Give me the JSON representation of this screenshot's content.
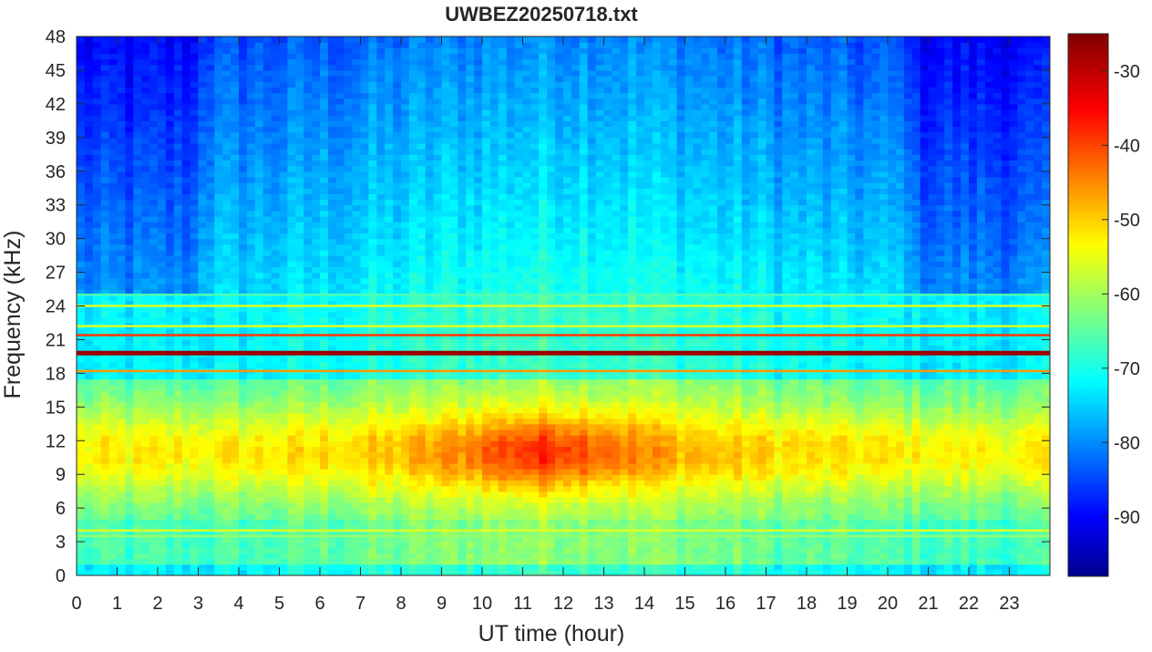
{
  "chart_data": {
    "type": "heatmap",
    "title": "UWBEZ20250718.txt",
    "xlabel": "UT time (hour)",
    "ylabel": "Frequency (kHz)",
    "xlim": [
      0,
      24
    ],
    "ylim": [
      0,
      48
    ],
    "xticks": [
      0,
      1,
      2,
      3,
      4,
      5,
      6,
      7,
      8,
      9,
      10,
      11,
      12,
      13,
      14,
      15,
      16,
      17,
      18,
      19,
      20,
      21,
      22,
      23
    ],
    "yticks": [
      0,
      3,
      6,
      9,
      12,
      15,
      18,
      21,
      24,
      27,
      30,
      33,
      36,
      39,
      42,
      45,
      48
    ],
    "colorbar": {
      "colormap": "jet",
      "range": [
        -98,
        -25
      ],
      "ticks": [
        -90,
        -80,
        -70,
        -60,
        -50,
        -40,
        -30
      ]
    },
    "features": {
      "narrowband_lines_khz": [
        {
          "freq": 19.8,
          "level": -27
        },
        {
          "freq": 21.4,
          "level": -38
        },
        {
          "freq": 18.2,
          "level": -45
        },
        {
          "freq": 22.2,
          "level": -55
        },
        {
          "freq": 24.0,
          "level": -55
        },
        {
          "freq": 25.0,
          "level": -65
        },
        {
          "freq": 4.0,
          "level": -55
        },
        {
          "freq": 3.5,
          "level": -60
        }
      ],
      "broadband_peak": {
        "time_hour": 11.5,
        "freq_khz": 11,
        "level": -45
      },
      "background_low": -92
    }
  }
}
